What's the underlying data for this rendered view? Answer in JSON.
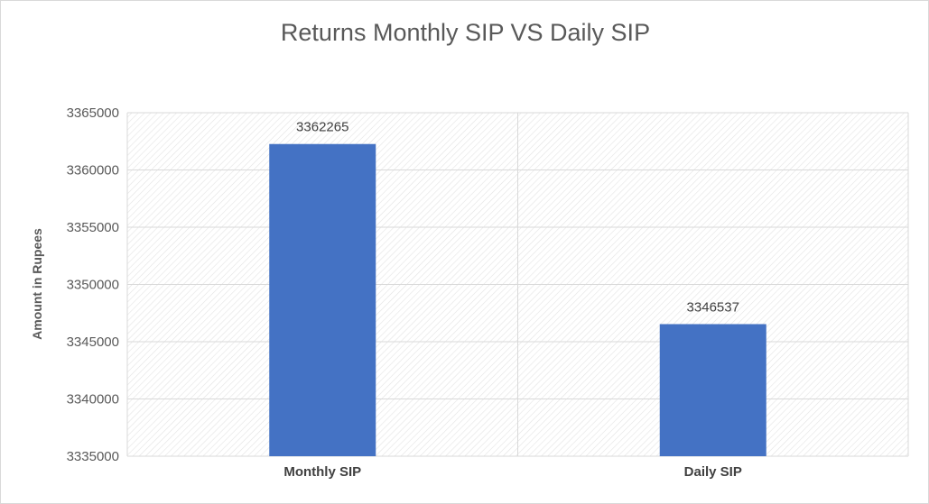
{
  "chart_data": {
    "type": "bar",
    "title": "Returns Monthly SIP VS Daily SIP",
    "xlabel": "",
    "ylabel": "Amount in Rupees",
    "categories": [
      "Monthly SIP",
      "Daily SIP"
    ],
    "values": [
      3362265,
      3346537
    ],
    "data_labels": [
      "3362265",
      "3346537"
    ],
    "ylim": [
      3335000,
      3365000
    ],
    "yticks": [
      3335000,
      3340000,
      3345000,
      3350000,
      3355000,
      3360000,
      3365000
    ],
    "ytick_labels": [
      "3335000",
      "3340000",
      "3345000",
      "3350000",
      "3355000",
      "3360000",
      "3365000"
    ],
    "grid": true,
    "legend": "none",
    "colors": {
      "bar": "#4472c4",
      "grid": "#d9d9d9",
      "plot_hatch": "#e6e6e6"
    }
  }
}
